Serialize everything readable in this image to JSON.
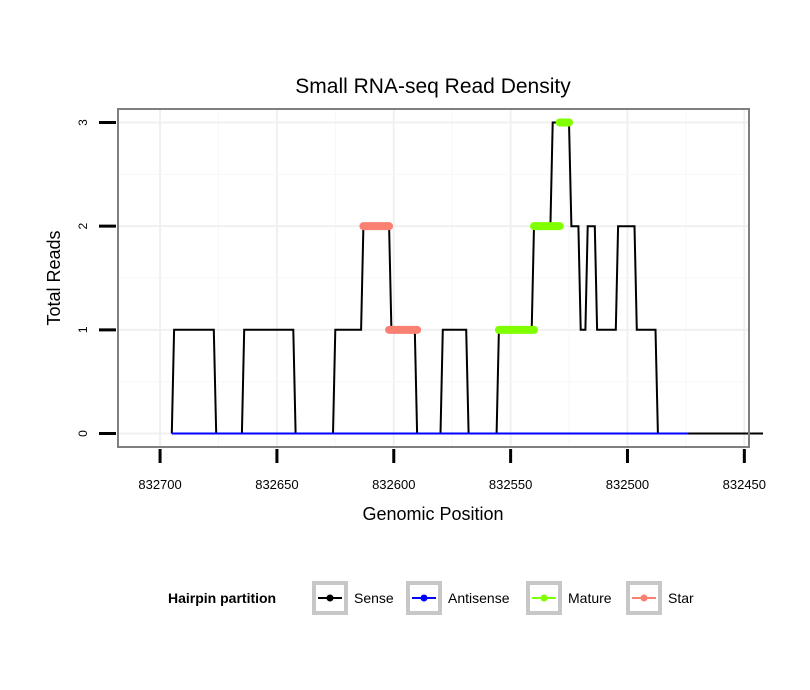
{
  "chart_data": {
    "type": "line",
    "title": "Small RNA-seq Read Density",
    "xlabel": "Genomic Position",
    "ylabel": "Total Reads",
    "xlim": [
      832718,
      832448
    ],
    "xreversed": true,
    "ylim": [
      -0.13,
      3.13
    ],
    "xticks": [
      832700,
      832650,
      832600,
      832550,
      832500,
      832450
    ],
    "xtick_labels": [
      "832700",
      "832650",
      "832600",
      "832550",
      "832500",
      "832450"
    ],
    "yticks": [
      0,
      1,
      2,
      3
    ],
    "ytick_labels": [
      "0",
      "1",
      "2",
      "3"
    ],
    "grid": true,
    "legend": {
      "title": "Hairpin partition",
      "placement": "bottom",
      "entries": [
        {
          "name": "Sense",
          "color": "#000000"
        },
        {
          "name": "Antisense",
          "color": "#0000ff"
        },
        {
          "name": "Mature",
          "color": "#7fff00"
        },
        {
          "name": "Star",
          "color": "#fa8072"
        }
      ]
    },
    "series": [
      {
        "name": "Sense",
        "color": "#000000",
        "x": [
          832695,
          832694,
          832677,
          832676,
          832665,
          832664,
          832643,
          832642,
          832626,
          832625,
          832614,
          832613,
          832602,
          832601,
          832591,
          832590,
          832580,
          832579,
          832569,
          832568,
          832556,
          832555,
          832541,
          832540,
          832533,
          832532,
          832525,
          832524,
          832521,
          832520,
          832518,
          832517,
          832514,
          832513,
          832505,
          832504,
          832497,
          832496,
          832488,
          832487,
          832475,
          832474,
          832442
        ],
        "values": [
          0,
          1,
          1,
          0,
          0,
          1,
          1,
          0,
          0,
          1,
          1,
          2,
          2,
          1,
          1,
          0,
          0,
          1,
          1,
          0,
          0,
          1,
          1,
          2,
          2,
          3,
          3,
          2,
          2,
          1,
          1,
          2,
          2,
          1,
          1,
          2,
          2,
          1,
          1,
          0,
          0,
          0,
          0
        ]
      },
      {
        "name": "Antisense",
        "color": "#0000ff",
        "x": [
          832695,
          832474
        ],
        "values": [
          0,
          0
        ]
      }
    ],
    "segments": [
      {
        "name": "Mature",
        "color": "#7fff00",
        "x0": 832555,
        "x1": 832540,
        "y": 1
      },
      {
        "name": "Mature",
        "color": "#7fff00",
        "x0": 832540,
        "x1": 832529,
        "y": 2
      },
      {
        "name": "Mature",
        "color": "#7fff00",
        "x0": 832529,
        "x1": 832525,
        "y": 3
      },
      {
        "name": "Star",
        "color": "#fa8072",
        "x0": 832613,
        "x1": 832602,
        "y": 2
      },
      {
        "name": "Star",
        "color": "#fa8072",
        "x0": 832602,
        "x1": 832590,
        "y": 1
      }
    ]
  }
}
